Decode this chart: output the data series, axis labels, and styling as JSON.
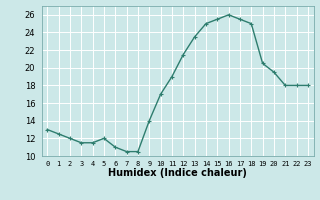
{
  "x": [
    0,
    1,
    2,
    3,
    4,
    5,
    6,
    7,
    8,
    9,
    10,
    11,
    12,
    13,
    14,
    15,
    16,
    17,
    18,
    19,
    20,
    21,
    22,
    23
  ],
  "y": [
    13,
    12.5,
    12,
    11.5,
    11.5,
    12,
    11,
    10.5,
    10.5,
    14,
    17,
    19,
    21.5,
    23.5,
    25,
    25.5,
    26,
    25.5,
    25,
    20.5,
    19.5,
    18,
    18,
    18
  ],
  "line_color": "#2e7d6e",
  "marker": "+",
  "marker_size": 3,
  "bg_color": "#cce8e8",
  "grid_color": "#ffffff",
  "xlabel": "Humidex (Indice chaleur)",
  "xlim": [
    -0.5,
    23.5
  ],
  "ylim": [
    10,
    27
  ],
  "yticks": [
    10,
    12,
    14,
    16,
    18,
    20,
    22,
    24,
    26
  ],
  "xticks": [
    0,
    1,
    2,
    3,
    4,
    5,
    6,
    7,
    8,
    9,
    10,
    11,
    12,
    13,
    14,
    15,
    16,
    17,
    18,
    19,
    20,
    21,
    22,
    23
  ],
  "line_width": 1.0
}
